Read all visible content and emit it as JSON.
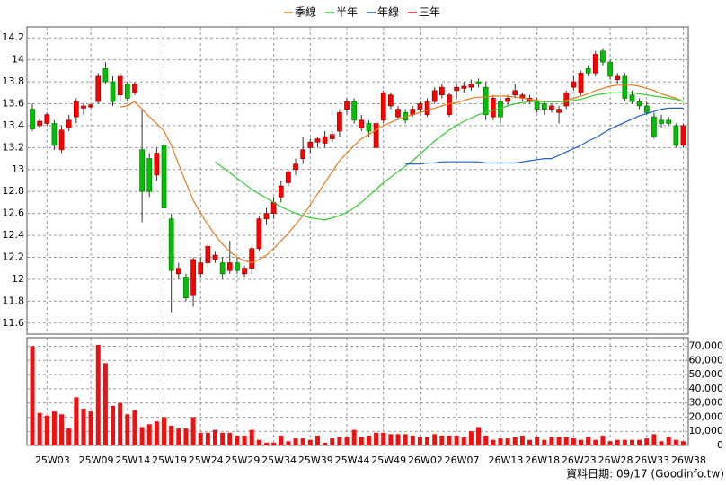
{
  "chart_data": [
    {
      "type": "candlestick",
      "legend_position": "top",
      "grid": true,
      "up_color": "#ff0000",
      "down_color": "#00c000",
      "categories": [
        null,
        null,
        "25W03",
        null,
        null,
        null,
        null,
        null,
        "25W09",
        null,
        null,
        null,
        null,
        "25W14",
        null,
        null,
        null,
        null,
        "25W19",
        null,
        null,
        null,
        null,
        "25W24",
        null,
        null,
        null,
        null,
        "25W29",
        null,
        null,
        null,
        null,
        "25W34",
        null,
        null,
        null,
        null,
        "25W39",
        null,
        null,
        null,
        null,
        "25W44",
        null,
        null,
        null,
        null,
        "25W49",
        null,
        null,
        null,
        null,
        "26W02",
        null,
        null,
        null,
        null,
        "26W07",
        null,
        null,
        null,
        null,
        null,
        "26W13",
        null,
        null,
        null,
        null,
        "26W18",
        null,
        null,
        null,
        null,
        "26W23",
        null,
        null,
        null,
        null,
        "26W28",
        null,
        null,
        null,
        null,
        "26W33",
        null,
        null,
        null,
        null,
        "26W38"
      ],
      "open": [
        13.55,
        13.4,
        13.42,
        13.42,
        13.18,
        13.38,
        13.48,
        13.56,
        13.57,
        13.62,
        13.92,
        13.8,
        13.68,
        13.78,
        13.7,
        13.18,
        13.1,
        12.95,
        13.22,
        12.55,
        12.05,
        12.02,
        11.85,
        12.05,
        12.15,
        12.18,
        12.15,
        12.08,
        12.15,
        12.05,
        12.1,
        12.28,
        12.55,
        12.6,
        12.75,
        12.88,
        13,
        13.1,
        13.2,
        13.25,
        13.24,
        13.28,
        13.35,
        13.55,
        13.62,
        13.38,
        13.42,
        13.2,
        13.45,
        13.58,
        13.48,
        13.52,
        13.5,
        13.55,
        13.5,
        13.62,
        13.68,
        13.5,
        13.72,
        13.74,
        13.75,
        13.8,
        13.75,
        13.48,
        13.62,
        13.62,
        13.68,
        13.65,
        13.62,
        13.62,
        13.6,
        13.55,
        13.52,
        13.58,
        13.75,
        13.7,
        13.92,
        13.88,
        14.08,
        13.98,
        13.82,
        13.85,
        13.68,
        13.62,
        13.58,
        13.48,
        13.45,
        13.45,
        13.4,
        13.22
      ],
      "high": [
        13.6,
        13.47,
        13.52,
        13.45,
        13.4,
        13.5,
        13.65,
        13.6,
        13.6,
        13.88,
        13.98,
        13.85,
        13.88,
        13.8,
        13.8,
        13.55,
        13.15,
        13.2,
        13.28,
        12.6,
        12.15,
        12.05,
        12.2,
        12.2,
        12.32,
        12.25,
        12.2,
        12.35,
        12.2,
        12.12,
        12.3,
        12.58,
        12.65,
        12.75,
        12.9,
        13,
        13.1,
        13.3,
        13.28,
        13.3,
        13.35,
        13.35,
        13.55,
        13.65,
        13.65,
        13.5,
        13.45,
        13.45,
        13.72,
        13.7,
        13.58,
        13.55,
        13.58,
        13.62,
        13.65,
        13.75,
        13.78,
        13.7,
        13.78,
        13.8,
        13.82,
        13.83,
        13.8,
        13.68,
        13.65,
        13.68,
        13.78,
        13.7,
        13.68,
        13.65,
        13.63,
        13.6,
        13.58,
        13.72,
        13.85,
        13.9,
        13.95,
        14.08,
        14.1,
        14,
        13.88,
        13.88,
        13.72,
        13.65,
        13.62,
        13.52,
        13.5,
        13.48,
        13.42,
        13.42
      ],
      "low": [
        13.35,
        13.38,
        13.4,
        13.18,
        13.15,
        13.35,
        13.42,
        13.5,
        13.56,
        13.6,
        13.78,
        13.58,
        13.62,
        13.62,
        13.68,
        12.52,
        12.75,
        12.9,
        12.6,
        11.7,
        12,
        11.8,
        11.75,
        12.02,
        12.12,
        12.15,
        12,
        12.05,
        12.05,
        12.02,
        12.05,
        12.25,
        12.5,
        12.55,
        12.7,
        12.85,
        12.95,
        13.05,
        13.15,
        13.2,
        13.2,
        13.25,
        13.3,
        13.5,
        13.42,
        13.35,
        13.3,
        13.18,
        13.42,
        13.55,
        13.45,
        13.42,
        13.48,
        13.52,
        13.48,
        13.6,
        13.65,
        13.48,
        13.65,
        13.7,
        13.72,
        13.75,
        13.45,
        13.45,
        13.42,
        13.58,
        13.65,
        13.62,
        13.6,
        13.52,
        13.5,
        13.52,
        13.42,
        13.55,
        13.72,
        13.68,
        13.85,
        13.85,
        13.95,
        13.82,
        13.78,
        13.62,
        13.6,
        13.55,
        13.5,
        13.28,
        13.38,
        13.4,
        13.2,
        13.2
      ],
      "close": [
        13.37,
        13.44,
        13.5,
        13.22,
        13.36,
        13.45,
        13.62,
        13.58,
        13.59,
        13.85,
        13.8,
        13.62,
        13.85,
        13.65,
        13.78,
        12.8,
        12.8,
        13.15,
        12.65,
        12.08,
        12.1,
        11.83,
        12.18,
        12.15,
        12.3,
        12.22,
        12.05,
        12.15,
        12.08,
        12.1,
        12.28,
        12.55,
        12.6,
        12.7,
        12.85,
        12.98,
        13.05,
        13.18,
        13.25,
        13.28,
        13.3,
        13.32,
        13.52,
        13.62,
        13.45,
        13.45,
        13.35,
        13.42,
        13.7,
        13.68,
        13.55,
        13.45,
        13.55,
        13.6,
        13.62,
        13.72,
        13.75,
        13.68,
        13.75,
        13.76,
        13.78,
        13.78,
        13.5,
        13.65,
        13.48,
        13.65,
        13.72,
        13.68,
        13.65,
        13.55,
        13.55,
        13.58,
        13.55,
        13.7,
        13.8,
        13.88,
        13.88,
        14.05,
        13.98,
        13.85,
        13.85,
        13.65,
        13.62,
        13.58,
        13.52,
        13.3,
        13.42,
        13.42,
        13.22,
        13.4
      ],
      "series": [
        {
          "name": "季線",
          "color": "#e87a1e",
          "values": [
            null,
            null,
            null,
            null,
            null,
            null,
            null,
            null,
            null,
            null,
            null,
            null,
            13.57,
            13.58,
            13.62,
            13.55,
            13.48,
            13.42,
            13.35,
            13.22,
            13.05,
            12.88,
            12.72,
            12.6,
            12.5,
            12.4,
            12.32,
            12.25,
            12.2,
            12.17,
            12.15,
            12.18,
            12.22,
            12.28,
            12.35,
            12.42,
            12.5,
            12.58,
            12.68,
            12.78,
            12.88,
            12.98,
            13.08,
            13.15,
            13.22,
            13.28,
            13.32,
            13.36,
            13.4,
            13.43,
            13.46,
            13.48,
            13.5,
            13.52,
            13.54,
            13.56,
            13.58,
            13.6,
            13.61,
            13.63,
            13.65,
            13.66,
            13.66,
            13.67,
            13.67,
            13.67,
            13.66,
            13.65,
            13.64,
            13.63,
            13.62,
            13.62,
            13.62,
            13.63,
            13.65,
            13.67,
            13.69,
            13.72,
            13.74,
            13.76,
            13.77,
            13.77,
            13.77,
            13.76,
            13.74,
            13.72,
            13.69,
            13.67,
            13.65,
            13.62
          ]
        },
        {
          "name": "半年",
          "color": "#33cc33",
          "values": [
            null,
            null,
            null,
            null,
            null,
            null,
            null,
            null,
            null,
            null,
            null,
            null,
            null,
            null,
            null,
            null,
            null,
            null,
            null,
            null,
            null,
            null,
            null,
            null,
            null,
            13.07,
            13.02,
            12.97,
            12.92,
            12.87,
            12.82,
            12.78,
            12.74,
            12.7,
            12.66,
            12.63,
            12.6,
            12.58,
            12.56,
            12.55,
            12.54,
            12.56,
            12.58,
            12.61,
            12.65,
            12.7,
            12.76,
            12.82,
            12.88,
            12.93,
            12.98,
            13.03,
            13.08,
            13.14,
            13.2,
            13.26,
            13.31,
            13.36,
            13.4,
            13.44,
            13.47,
            13.5,
            13.52,
            13.54,
            13.56,
            13.58,
            13.6,
            13.61,
            13.62,
            13.62,
            13.62,
            13.62,
            13.62,
            13.62,
            13.63,
            13.64,
            13.66,
            13.68,
            13.69,
            13.7,
            13.7,
            13.7,
            13.7,
            13.69,
            13.68,
            13.67,
            13.66,
            13.65,
            13.64,
            13.62
          ]
        },
        {
          "name": "年線",
          "color": "#1f5fc8",
          "values": [
            null,
            null,
            null,
            null,
            null,
            null,
            null,
            null,
            null,
            null,
            null,
            null,
            null,
            null,
            null,
            null,
            null,
            null,
            null,
            null,
            null,
            null,
            null,
            null,
            null,
            null,
            null,
            null,
            null,
            null,
            null,
            null,
            null,
            null,
            null,
            null,
            null,
            null,
            null,
            null,
            null,
            null,
            null,
            null,
            null,
            null,
            null,
            null,
            null,
            null,
            null,
            13.05,
            13.05,
            13.05,
            13.06,
            13.06,
            13.07,
            13.07,
            13.07,
            13.07,
            13.07,
            13.07,
            13.06,
            13.06,
            13.06,
            13.06,
            13.06,
            13.07,
            13.08,
            13.09,
            13.1,
            13.1,
            13.13,
            13.16,
            13.19,
            13.22,
            13.26,
            13.29,
            13.33,
            13.37,
            13.4,
            13.43,
            13.46,
            13.49,
            13.51,
            13.53,
            13.55,
            13.56,
            13.56,
            13.56
          ]
        },
        {
          "name": "三年",
          "color": "#e02020",
          "values": [
            null,
            null,
            null,
            null,
            null,
            null,
            null,
            null,
            null,
            null,
            null,
            null,
            null,
            null,
            null,
            null,
            null,
            null,
            null,
            null,
            null,
            null,
            null,
            null,
            null,
            null,
            null,
            null,
            null,
            null,
            null,
            null,
            null,
            null,
            null,
            null,
            null,
            null,
            null,
            null,
            null,
            null,
            null,
            null,
            null,
            null,
            null,
            null,
            null,
            null,
            null,
            null,
            null,
            null,
            null,
            null,
            null,
            null,
            null,
            null,
            null,
            null,
            null,
            null,
            null,
            null,
            null,
            null,
            null,
            null,
            null,
            null,
            null,
            null,
            null,
            null,
            null,
            null,
            null,
            null,
            null,
            null,
            null,
            null,
            null,
            null,
            null,
            null,
            null,
            null
          ]
        }
      ],
      "ylim": [
        11.5,
        14.3
      ],
      "yticks": [
        11.6,
        11.8,
        12,
        12.2,
        12.4,
        12.6,
        12.8,
        13,
        13.2,
        13.4,
        13.6,
        13.8,
        14,
        14.2
      ],
      "source": "資料日期: 09/17 (Goodinfo.tw)"
    },
    {
      "type": "bar",
      "grid": true,
      "color": "#ee1111",
      "values": [
        70000,
        23000,
        21000,
        24000,
        22000,
        12000,
        34000,
        26000,
        24000,
        71000,
        58000,
        28000,
        30000,
        22000,
        25000,
        13000,
        15000,
        17000,
        20000,
        14000,
        12000,
        12000,
        20000,
        9000,
        9000,
        11000,
        9000,
        9000,
        7000,
        7000,
        11000,
        4000,
        2000,
        2000,
        7000,
        3000,
        5000,
        5000,
        4000,
        7000,
        2000,
        5000,
        6000,
        6000,
        11000,
        6000,
        7000,
        9000,
        9000,
        8000,
        8000,
        8000,
        7000,
        6000,
        6000,
        8000,
        7000,
        7000,
        7000,
        6000,
        10000,
        13000,
        7000,
        4000,
        5000,
        5000,
        6000,
        7000,
        4000,
        6000,
        4000,
        6000,
        6000,
        6000,
        5000,
        4000,
        6000,
        4000,
        7000,
        3000,
        4000,
        4000,
        4000,
        4000,
        5000,
        8000,
        3000,
        6000,
        4000,
        3000
      ],
      "ylim": [
        0,
        76000
      ],
      "yticks": [
        0,
        {
          "value": 10000,
          "label": "10,000"
        },
        {
          "value": 20000,
          "label": "20,000"
        },
        {
          "value": 30000,
          "label": "30,000"
        },
        {
          "value": 40000,
          "label": "40,000"
        },
        {
          "value": 50000,
          "label": "50,000"
        },
        {
          "value": 60000,
          "label": "60,000"
        },
        {
          "value": 70000,
          "label": "70,000"
        }
      ]
    }
  ]
}
